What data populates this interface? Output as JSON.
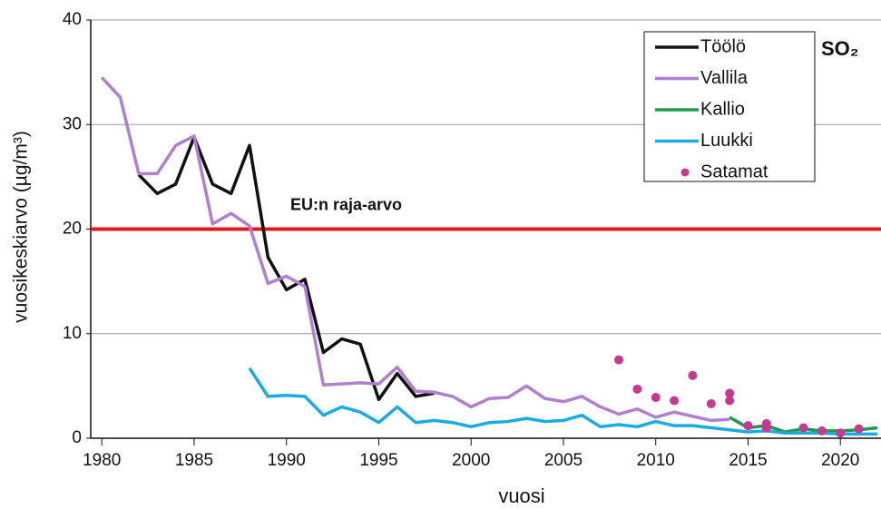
{
  "chart_data": {
    "type": "line",
    "x_label": "vuosi",
    "y_label": "vuosikeskiarvo (µg/m³)",
    "annotation": "SO₂",
    "xlim": [
      1979.4,
      2022.2
    ],
    "xticks": [
      1980,
      1985,
      1990,
      1995,
      2000,
      2005,
      2010,
      2015,
      2020
    ],
    "ylim": [
      0,
      40
    ],
    "yticks": [
      0,
      10,
      20,
      30,
      40
    ],
    "grid": true,
    "legend": "upper right",
    "hline": {
      "value": 20,
      "label": "EU:n raja-arvo",
      "color": "#e8141b"
    },
    "series": [
      {
        "name": "Töölö",
        "color": "#111111",
        "type": "line",
        "x": [
          1982,
          1983,
          1984,
          1985,
          1986,
          1987,
          1988,
          1989,
          1990,
          1991,
          1992,
          1993,
          1994,
          1995,
          1996,
          1997,
          1998
        ],
        "values": [
          25.2,
          23.4,
          24.3,
          28.8,
          24.3,
          23.4,
          28.0,
          17.3,
          14.2,
          15.2,
          8.2,
          9.5,
          9.0,
          3.7,
          6.2,
          4.0,
          4.3
        ]
      },
      {
        "name": "Vallila",
        "color": "#b07fd0",
        "type": "line",
        "x": [
          1980,
          1981,
          1982,
          1983,
          1984,
          1985,
          1986,
          1987,
          1988,
          1989,
          1990,
          1991,
          1992,
          1993,
          1994,
          1995,
          1996,
          1997,
          1998,
          1999,
          2000,
          2001,
          2002,
          2003,
          2004,
          2005,
          2006,
          2007,
          2008,
          2009,
          2010,
          2011,
          2012,
          2013,
          2014
        ],
        "values": [
          34.5,
          32.6,
          25.3,
          25.3,
          28.0,
          28.9,
          20.5,
          21.5,
          20.3,
          14.8,
          15.5,
          14.5,
          5.1,
          5.2,
          5.3,
          5.2,
          6.8,
          4.5,
          4.4,
          4.0,
          3.0,
          3.8,
          3.9,
          5.0,
          3.8,
          3.5,
          4.0,
          3.0,
          2.3,
          2.8,
          2.0,
          2.5,
          2.1,
          1.7,
          1.8
        ]
      },
      {
        "name": "Kallio",
        "color": "#1e9a4a",
        "type": "line",
        "x": [
          2014,
          2015,
          2016,
          2017,
          2018,
          2019,
          2020,
          2021,
          2022
        ],
        "values": [
          2.0,
          1.0,
          1.2,
          0.6,
          0.9,
          0.7,
          0.7,
          0.8,
          1.0
        ]
      },
      {
        "name": "Luukki",
        "color": "#1aabe0",
        "type": "line",
        "x": [
          1988,
          1989,
          1990,
          1991,
          1992,
          1993,
          1994,
          1995,
          1996,
          1997,
          1998,
          1999,
          2000,
          2001,
          2002,
          2003,
          2004,
          2005,
          2006,
          2007,
          2008,
          2009,
          2010,
          2011,
          2012,
          2013,
          2014,
          2015,
          2016,
          2017,
          2018,
          2019,
          2020,
          2021,
          2022
        ],
        "values": [
          6.7,
          4.0,
          4.1,
          4.0,
          2.2,
          3.0,
          2.5,
          1.5,
          3.0,
          1.5,
          1.7,
          1.5,
          1.1,
          1.5,
          1.6,
          1.9,
          1.6,
          1.7,
          2.2,
          1.1,
          1.3,
          1.1,
          1.6,
          1.2,
          1.2,
          1.0,
          0.8,
          0.6,
          0.7,
          0.5,
          0.5,
          0.5,
          0.4,
          0.4,
          0.4
        ]
      },
      {
        "name": "Satamat",
        "color": "#c8388f",
        "type": "scatter",
        "x": [
          2008,
          2009,
          2010,
          2011,
          2012,
          2013,
          2014,
          2014,
          2015,
          2016,
          2016,
          2018,
          2019,
          2020,
          2021
        ],
        "values": [
          7.5,
          4.7,
          3.9,
          3.6,
          6.0,
          3.3,
          4.3,
          3.6,
          1.2,
          1.4,
          1.0,
          1.0,
          0.7,
          0.5,
          0.9
        ]
      }
    ]
  }
}
